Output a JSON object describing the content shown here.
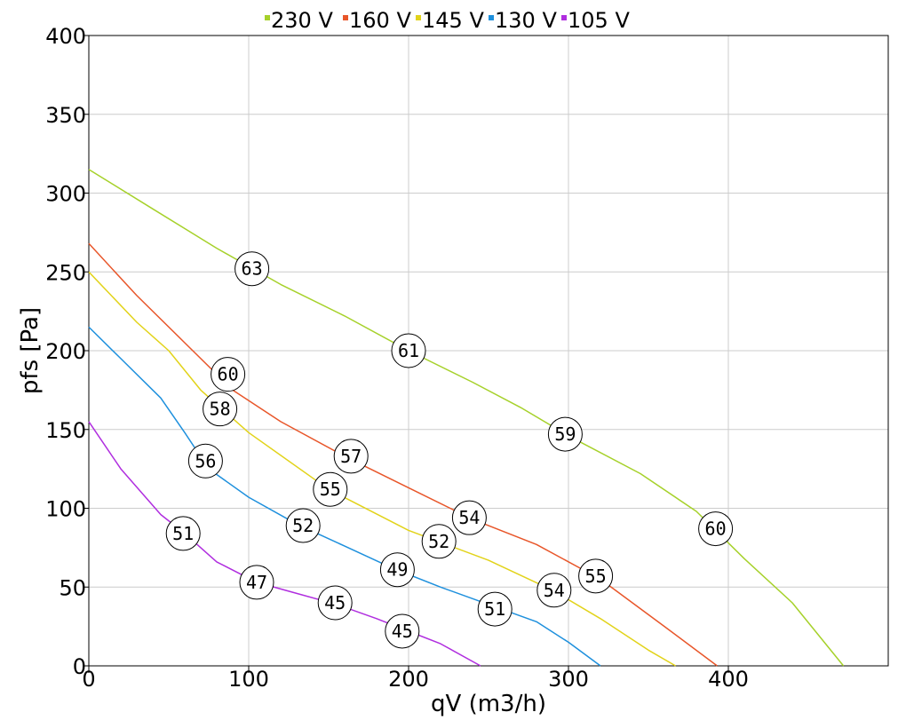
{
  "chart_data": {
    "type": "line",
    "xlabel": "qV (m3/h)",
    "ylabel": "pfs [Pa]",
    "xlim": [
      0,
      500
    ],
    "ylim": [
      0,
      400
    ],
    "xticks": [
      0,
      100,
      200,
      300,
      400
    ],
    "yticks": [
      0,
      50,
      100,
      150,
      200,
      250,
      300,
      350,
      400
    ],
    "grid": true,
    "legend_position": "top",
    "series": [
      {
        "name": "230 V",
        "color": "#a6d12a",
        "x": [
          0,
          40,
          80,
          120,
          160,
          200,
          240,
          270,
          300,
          345,
          380,
          410,
          440,
          472
        ],
        "y": [
          315,
          290,
          265,
          242,
          222,
          200,
          180,
          164,
          146,
          122,
          98,
          68,
          40,
          0
        ],
        "labels": [
          {
            "x": 102,
            "y": 252,
            "text": "63"
          },
          {
            "x": 200,
            "y": 200,
            "text": "61"
          },
          {
            "x": 298,
            "y": 147,
            "text": "59"
          },
          {
            "x": 392,
            "y": 87,
            "text": "60"
          }
        ]
      },
      {
        "name": "160 V",
        "color": "#e8562a",
        "x": [
          0,
          30,
          60,
          90,
          120,
          160,
          200,
          240,
          280,
          320,
          360,
          393
        ],
        "y": [
          268,
          235,
          205,
          175,
          155,
          133,
          113,
          93,
          77,
          55,
          25,
          0
        ],
        "labels": [
          {
            "x": 87,
            "y": 185,
            "text": "60"
          },
          {
            "x": 164,
            "y": 133,
            "text": "57"
          },
          {
            "x": 238,
            "y": 94,
            "text": "54"
          },
          {
            "x": 317,
            "y": 57,
            "text": "55"
          }
        ]
      },
      {
        "name": "145 V",
        "color": "#e2d31a",
        "x": [
          0,
          30,
          50,
          70,
          100,
          150,
          200,
          250,
          290,
          320,
          350,
          367
        ],
        "y": [
          250,
          218,
          200,
          175,
          148,
          112,
          86,
          67,
          48,
          30,
          10,
          0
        ],
        "labels": [
          {
            "x": 82,
            "y": 163,
            "text": "58"
          },
          {
            "x": 151,
            "y": 112,
            "text": "55"
          },
          {
            "x": 219,
            "y": 79,
            "text": "52"
          },
          {
            "x": 291,
            "y": 48,
            "text": "54"
          }
        ]
      },
      {
        "name": "130 V",
        "color": "#1e90dd",
        "x": [
          0,
          20,
          45,
          60,
          75,
          100,
          130,
          160,
          190,
          220,
          250,
          280,
          300,
          320
        ],
        "y": [
          215,
          195,
          170,
          148,
          125,
          107,
          90,
          76,
          62,
          50,
          39,
          28,
          15,
          0
        ],
        "labels": [
          {
            "x": 73,
            "y": 130,
            "text": "56"
          },
          {
            "x": 134,
            "y": 89,
            "text": "52"
          },
          {
            "x": 193,
            "y": 61,
            "text": "49"
          },
          {
            "x": 254,
            "y": 36,
            "text": "51"
          }
        ]
      },
      {
        "name": "105 V",
        "color": "#b02edf",
        "x": [
          0,
          20,
          45,
          60,
          80,
          105,
          130,
          155,
          180,
          200,
          220,
          245
        ],
        "y": [
          155,
          125,
          96,
          84,
          66,
          53,
          46,
          39,
          30,
          22,
          14,
          0
        ],
        "labels": [
          {
            "x": 59,
            "y": 84,
            "text": "51"
          },
          {
            "x": 105,
            "y": 53,
            "text": "47"
          },
          {
            "x": 154,
            "y": 40,
            "text": "45"
          },
          {
            "x": 196,
            "y": 22,
            "text": "45"
          }
        ]
      }
    ]
  }
}
